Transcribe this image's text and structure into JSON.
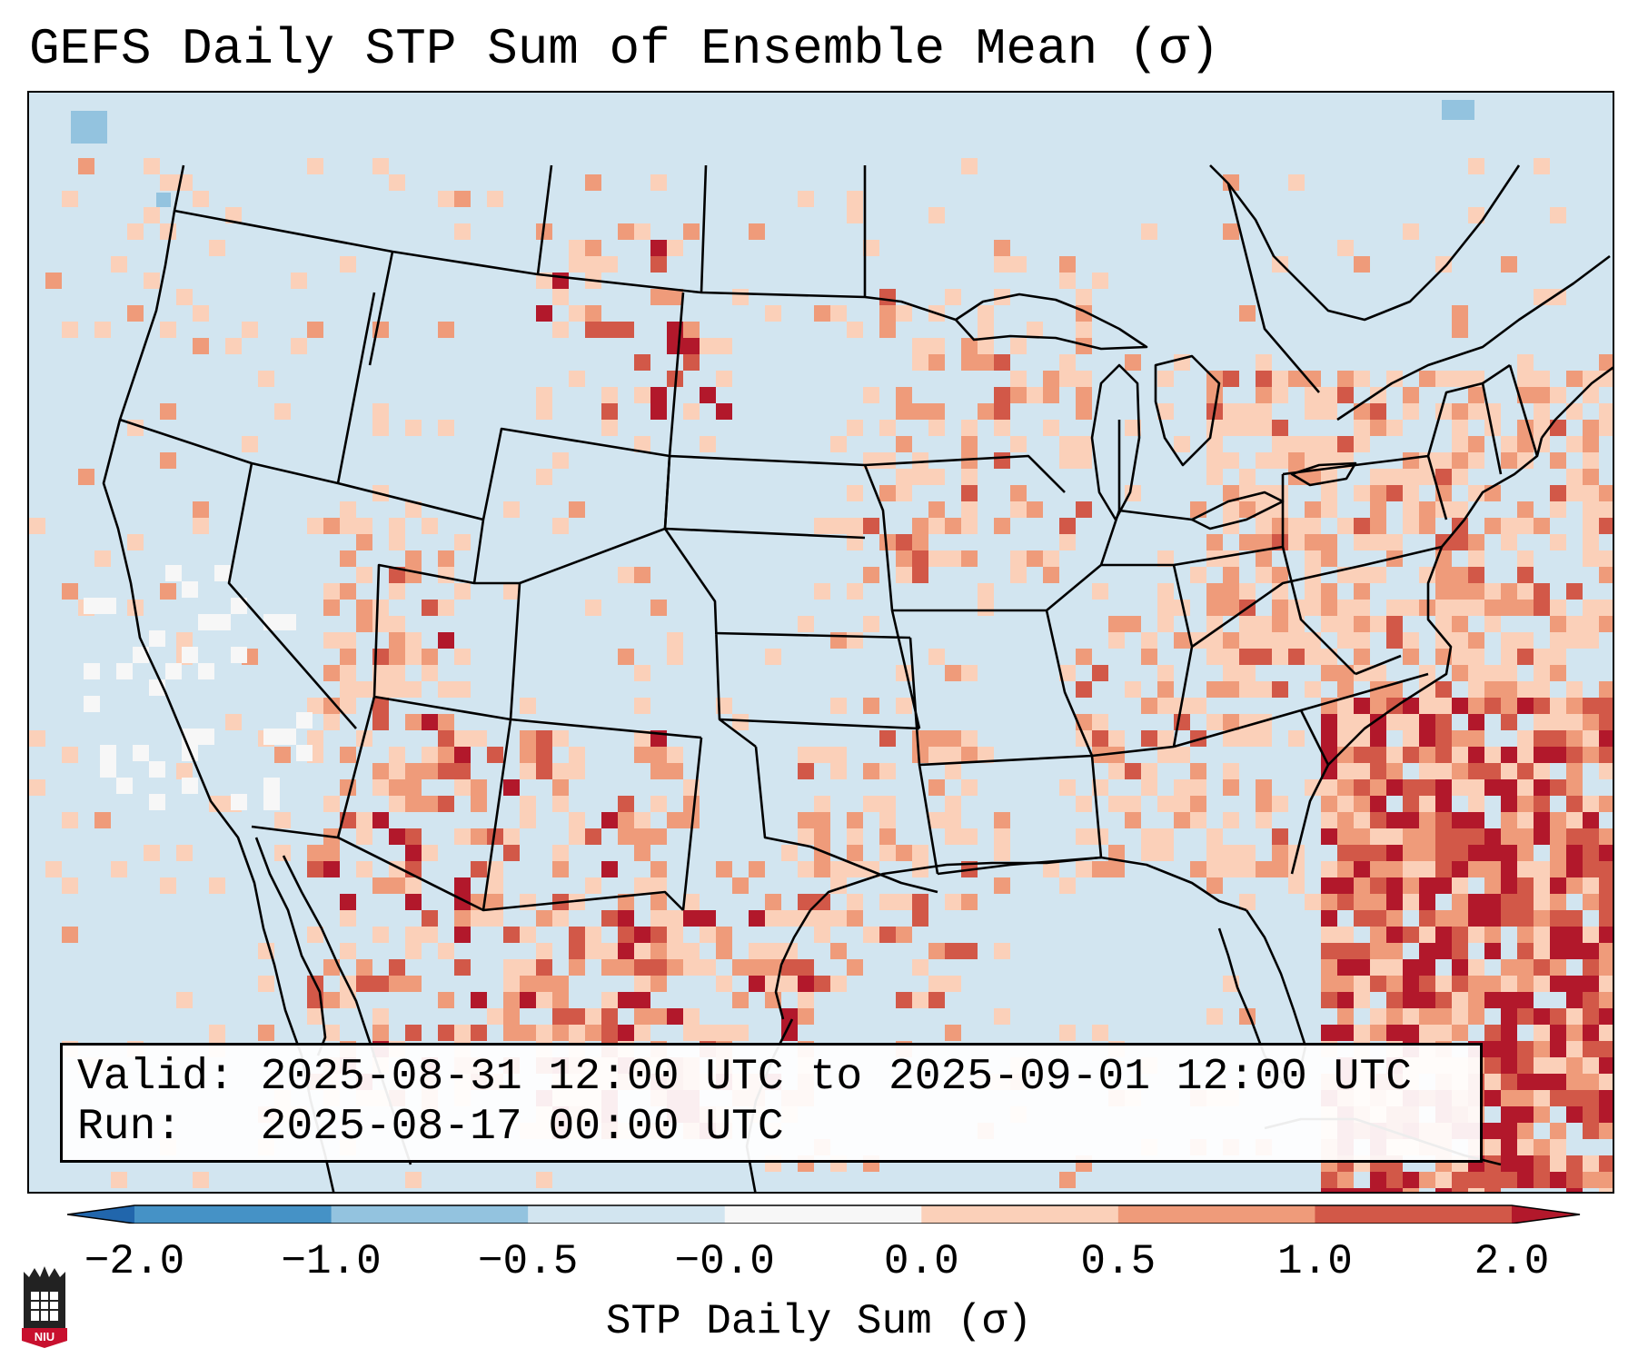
{
  "title": "GEFS Daily STP Sum of Ensemble Mean (σ)",
  "info": {
    "valid_line": "Valid: 2025-08-31 12:00 UTC to 2025-09-01 12:00 UTC",
    "run_line": "Run:   2025-08-17 00:00 UTC"
  },
  "colorbar": {
    "label": "STP Daily Sum (σ)",
    "ticks": [
      "−2.0",
      "−1.0",
      "−0.5",
      "−0.0",
      "0.0",
      "0.5",
      "1.0",
      "2.0"
    ],
    "colors": [
      "#4592c6",
      "#93c3df",
      "#d2e5f0",
      "#f7f7f7",
      "#fbd0b9",
      "#ef9b7a",
      "#d25848"
    ],
    "extend_low_color": "#2166ac",
    "extend_high_color": "#b2182b"
  },
  "map": {
    "background_color": "#d2e5f0",
    "outline_color": "#000000"
  },
  "logo": {
    "text": "NIU"
  }
}
